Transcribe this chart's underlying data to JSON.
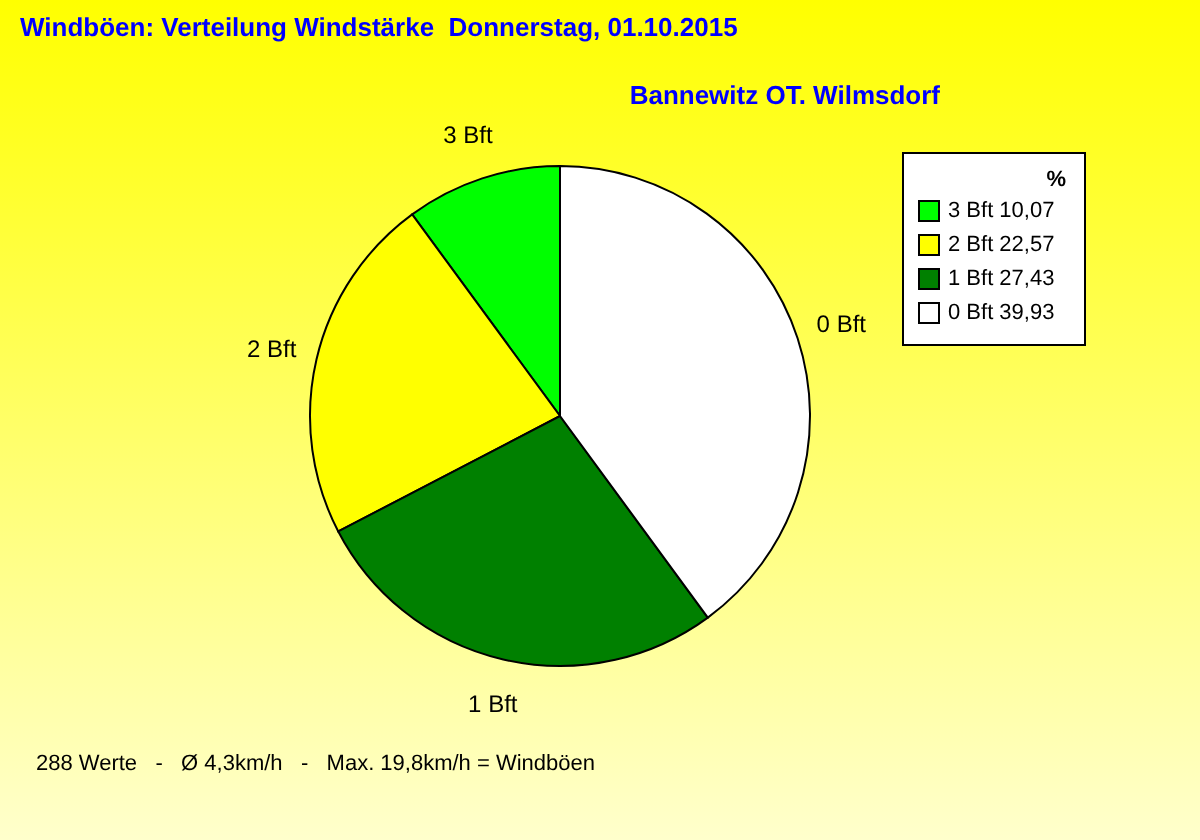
{
  "chart_data": {
    "type": "pie",
    "title": "Windböen: Verteilung Windstärke  Donnerstag, 01.10.2015",
    "subtitle": "Bannewitz OT. Wilmsdorf",
    "legend_title": "%",
    "legend": "top right",
    "categories": [
      "3 Bft",
      "2 Bft",
      "1 Bft",
      "0 Bft"
    ],
    "values": [
      10.07,
      22.57,
      27.43,
      39.93
    ],
    "value_labels": [
      "10,07",
      "22,57",
      "27,43",
      "39,93"
    ],
    "colors": [
      "#00ff00",
      "#ffff00",
      "#008000",
      "#ffffff"
    ],
    "annotations": [
      "288 Werte   -   Ø 4,3km/h   -   Max. 19,8km/h = Windböen"
    ]
  }
}
